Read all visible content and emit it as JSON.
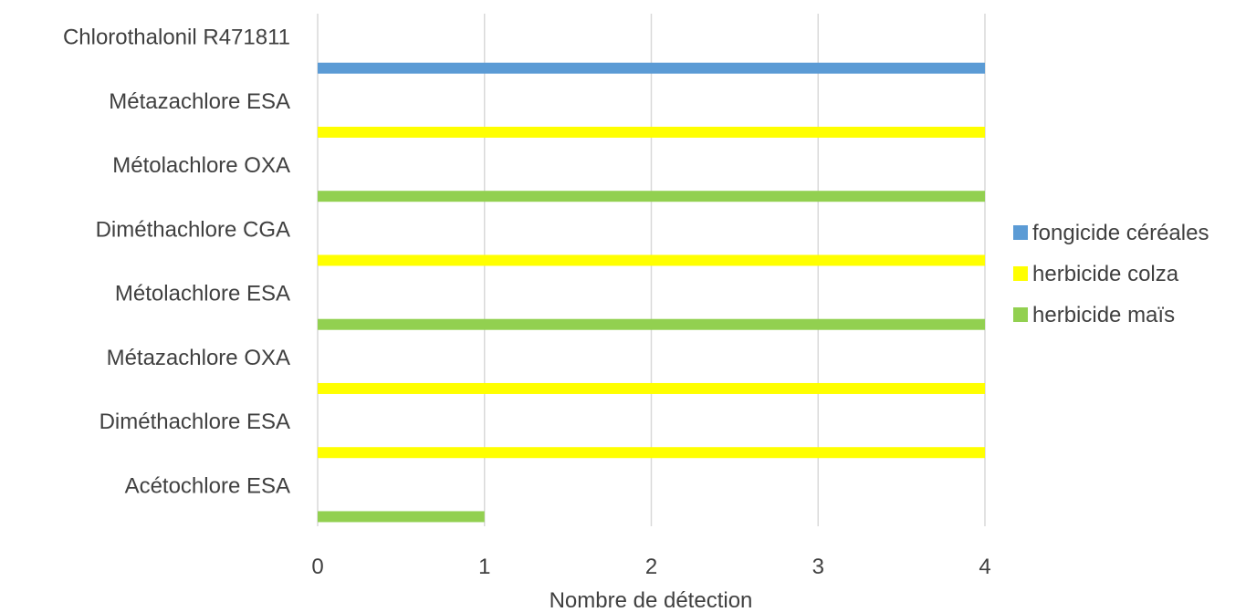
{
  "chart_data": {
    "type": "bar",
    "orientation": "horizontal",
    "categories": [
      "Chlorothalonil R471811",
      "Métazachlore ESA",
      "Métolachlore OXA",
      "Diméthachlore CGA",
      "Métolachlore ESA",
      "Métazachlore OXA",
      "Diméthachlore ESA",
      "Acétochlore ESA"
    ],
    "values": [
      4,
      4,
      4,
      4,
      4,
      4,
      4,
      1
    ],
    "bar_series": [
      "fongicide céréales",
      "herbicide colza",
      "herbicide maïs",
      "herbicide colza",
      "herbicide maïs",
      "herbicide colza",
      "herbicide colza",
      "herbicide maïs"
    ],
    "series": [
      {
        "name": "fongicide céréales",
        "color": "#5b9bd5"
      },
      {
        "name": "herbicide colza",
        "color": "#ffff00"
      },
      {
        "name": "herbicide maïs",
        "color": "#92d050"
      }
    ],
    "xlabel": "Nombre de détection",
    "ylabel": "",
    "title": "",
    "xlim": [
      0,
      4
    ],
    "xticks": [
      "0",
      "1",
      "2",
      "3",
      "4"
    ],
    "grid": "vertical",
    "legend_position": "right"
  }
}
